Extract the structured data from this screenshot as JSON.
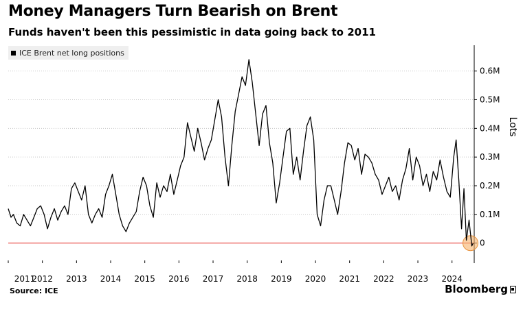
{
  "title": "Money Managers Turn Bearish on Brent",
  "subtitle": "Funds haven't been this pessimistic in data going back to 2011",
  "legend": {
    "label": "ICE Brent net long positions"
  },
  "source": "Source: ICE",
  "brand": "Bloomberg",
  "colors": {
    "line": "#000000",
    "zero_line": "#e8413b",
    "grid": "#c8c8c8",
    "highlight": "#f7b36a"
  },
  "chart_data": {
    "type": "line",
    "title": "Money Managers Turn Bearish on Brent",
    "ylabel": "Lots",
    "ylim": [
      -0.07,
      0.69
    ],
    "y_ticks": [
      0,
      0.1,
      0.2,
      0.3,
      0.4,
      0.5,
      0.6
    ],
    "y_tick_labels": [
      "0",
      "0.1M",
      "0.2M",
      "0.3M",
      "0.4M",
      "0.5M",
      "0.6M"
    ],
    "xlim": [
      2011.0,
      2024.65
    ],
    "x_ticks": [
      2011,
      2012,
      2013,
      2014,
      2015,
      2016,
      2017,
      2018,
      2019,
      2020,
      2021,
      2022,
      2023,
      2024
    ],
    "x_tick_labels": [
      "2011",
      "2012",
      "2013",
      "2014",
      "2015",
      "2016",
      "2017",
      "2018",
      "2019",
      "2020",
      "2021",
      "2022",
      "2023",
      "2024"
    ],
    "legend_position": "top-left",
    "grid": "horizontal dotted",
    "series": [
      {
        "name": "ICE Brent net long positions",
        "x": [
          2011.0,
          2011.08,
          2011.15,
          2011.25,
          2011.35,
          2011.45,
          2011.55,
          2011.65,
          2011.75,
          2011.85,
          2011.95,
          2012.05,
          2012.15,
          2012.25,
          2012.35,
          2012.45,
          2012.55,
          2012.65,
          2012.75,
          2012.85,
          2012.95,
          2013.05,
          2013.15,
          2013.25,
          2013.35,
          2013.45,
          2013.55,
          2013.65,
          2013.75,
          2013.85,
          2013.95,
          2014.05,
          2014.15,
          2014.25,
          2014.35,
          2014.45,
          2014.55,
          2014.65,
          2014.75,
          2014.85,
          2014.95,
          2015.05,
          2015.15,
          2015.25,
          2015.35,
          2015.45,
          2015.55,
          2015.65,
          2015.75,
          2015.85,
          2015.95,
          2016.05,
          2016.15,
          2016.25,
          2016.35,
          2016.45,
          2016.55,
          2016.65,
          2016.75,
          2016.85,
          2016.95,
          2017.05,
          2017.15,
          2017.25,
          2017.35,
          2017.45,
          2017.55,
          2017.65,
          2017.75,
          2017.85,
          2017.95,
          2018.05,
          2018.15,
          2018.25,
          2018.35,
          2018.45,
          2018.55,
          2018.65,
          2018.75,
          2018.85,
          2018.95,
          2019.05,
          2019.15,
          2019.25,
          2019.35,
          2019.45,
          2019.55,
          2019.65,
          2019.75,
          2019.85,
          2019.95,
          2020.05,
          2020.15,
          2020.25,
          2020.35,
          2020.45,
          2020.55,
          2020.65,
          2020.75,
          2020.85,
          2020.95,
          2021.05,
          2021.15,
          2021.25,
          2021.35,
          2021.45,
          2021.55,
          2021.65,
          2021.75,
          2021.85,
          2021.95,
          2022.05,
          2022.15,
          2022.25,
          2022.35,
          2022.45,
          2022.55,
          2022.65,
          2022.75,
          2022.85,
          2022.95,
          2023.05,
          2023.15,
          2023.25,
          2023.35,
          2023.45,
          2023.55,
          2023.65,
          2023.75,
          2023.85,
          2023.95,
          2024.05,
          2024.12,
          2024.2,
          2024.28,
          2024.35,
          2024.42,
          2024.5,
          2024.58,
          2024.62
        ],
        "values": [
          0.12,
          0.09,
          0.1,
          0.07,
          0.06,
          0.1,
          0.08,
          0.06,
          0.09,
          0.12,
          0.13,
          0.1,
          0.05,
          0.09,
          0.12,
          0.08,
          0.11,
          0.13,
          0.1,
          0.19,
          0.21,
          0.18,
          0.15,
          0.2,
          0.1,
          0.07,
          0.1,
          0.12,
          0.09,
          0.17,
          0.2,
          0.24,
          0.17,
          0.1,
          0.06,
          0.04,
          0.07,
          0.09,
          0.11,
          0.18,
          0.23,
          0.2,
          0.13,
          0.09,
          0.21,
          0.16,
          0.2,
          0.18,
          0.24,
          0.17,
          0.22,
          0.27,
          0.3,
          0.42,
          0.37,
          0.32,
          0.4,
          0.35,
          0.29,
          0.33,
          0.36,
          0.43,
          0.5,
          0.44,
          0.3,
          0.2,
          0.34,
          0.46,
          0.52,
          0.58,
          0.55,
          0.64,
          0.56,
          0.45,
          0.34,
          0.45,
          0.48,
          0.35,
          0.28,
          0.14,
          0.21,
          0.3,
          0.39,
          0.4,
          0.24,
          0.3,
          0.22,
          0.32,
          0.41,
          0.44,
          0.36,
          0.1,
          0.06,
          0.15,
          0.2,
          0.2,
          0.15,
          0.1,
          0.18,
          0.28,
          0.35,
          0.34,
          0.29,
          0.33,
          0.24,
          0.31,
          0.3,
          0.28,
          0.24,
          0.22,
          0.17,
          0.2,
          0.23,
          0.18,
          0.2,
          0.15,
          0.22,
          0.26,
          0.33,
          0.22,
          0.3,
          0.27,
          0.2,
          0.24,
          0.18,
          0.25,
          0.22,
          0.29,
          0.23,
          0.18,
          0.16,
          0.3,
          0.36,
          0.22,
          0.05,
          0.19,
          0.01,
          0.08,
          -0.01,
          0.0
        ]
      }
    ]
  }
}
